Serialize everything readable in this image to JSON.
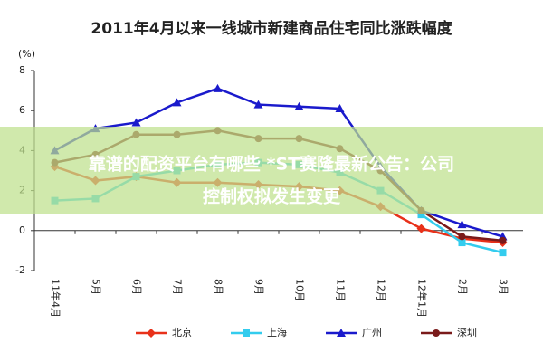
{
  "chart_data": {
    "type": "line",
    "title": "2011年4月以来一线城市新建商品住宅同比涨跌幅度",
    "y_label": "(%)",
    "categories": [
      "11年4月",
      "5月",
      "6月",
      "7月",
      "8月",
      "9月",
      "10月",
      "11月",
      "12月",
      "12年1月",
      "2月",
      "3月"
    ],
    "series": [
      {
        "name": "北京",
        "color": "#e8311a",
        "values": [
          3.2,
          2.5,
          2.7,
          2.4,
          2.4,
          2.3,
          2.2,
          2.0,
          1.2,
          0.1,
          -0.4,
          -0.6
        ]
      },
      {
        "name": "上海",
        "color": "#33ccee",
        "values": [
          1.5,
          1.6,
          2.7,
          3.0,
          3.3,
          3.4,
          3.3,
          2.9,
          2.0,
          0.8,
          -0.6,
          -1.1
        ]
      },
      {
        "name": "广州",
        "color": "#1a1acc",
        "values": [
          4.0,
          5.1,
          5.4,
          6.4,
          7.1,
          6.3,
          6.2,
          6.1,
          3.2,
          1.0,
          0.3,
          -0.3
        ]
      },
      {
        "name": "深圳",
        "color": "#7a1a1a",
        "values": [
          3.4,
          3.8,
          4.8,
          4.8,
          5.0,
          4.6,
          4.6,
          4.1,
          3.0,
          1.0,
          -0.3,
          -0.5
        ]
      }
    ],
    "ylim": [
      -2,
      8
    ],
    "yticks": [
      -2,
      0,
      2,
      4,
      6,
      8
    ],
    "grid": false,
    "legend": "bottom"
  },
  "overlay": {
    "text_lines": [
      "靠谱的配资平台有哪些 *ST赛隆最新公告：公司",
      "控制权拟发生变更"
    ]
  }
}
